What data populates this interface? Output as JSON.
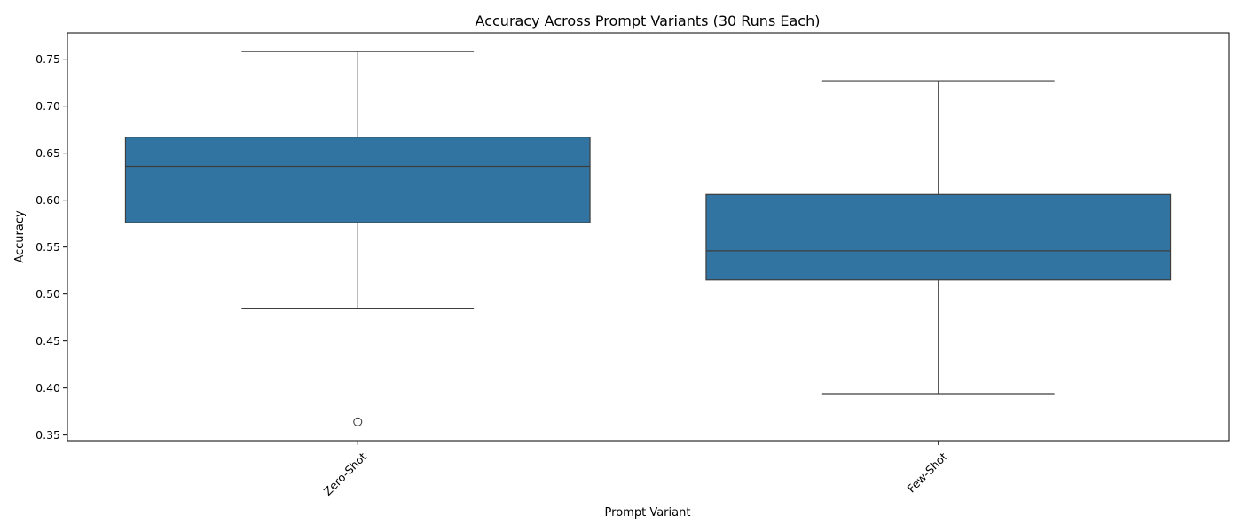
{
  "chart_data": {
    "type": "box",
    "title": "Accuracy Across Prompt Variants (30 Runs Each)",
    "xlabel": "Prompt Variant",
    "ylabel": "Accuracy",
    "ylim": [
      0.344,
      0.778
    ],
    "yticks": [
      0.35,
      0.4,
      0.45,
      0.5,
      0.55,
      0.6,
      0.65,
      0.7,
      0.75
    ],
    "ytick_labels": [
      "0.35",
      "0.40",
      "0.45",
      "0.50",
      "0.55",
      "0.60",
      "0.65",
      "0.70",
      "0.75"
    ],
    "categories": [
      "Zero-Shot",
      "Few-Shot"
    ],
    "box_color": "#3274a1",
    "line_color": "#3d3d3d",
    "grid": false,
    "boxes": [
      {
        "category": "Zero-Shot",
        "whisker_low": 0.485,
        "q1": 0.576,
        "median": 0.636,
        "q3": 0.667,
        "whisker_high": 0.758,
        "outliers": [
          0.364
        ]
      },
      {
        "category": "Few-Shot",
        "whisker_low": 0.394,
        "q1": 0.515,
        "median": 0.546,
        "q3": 0.606,
        "whisker_high": 0.727,
        "outliers": []
      }
    ]
  }
}
